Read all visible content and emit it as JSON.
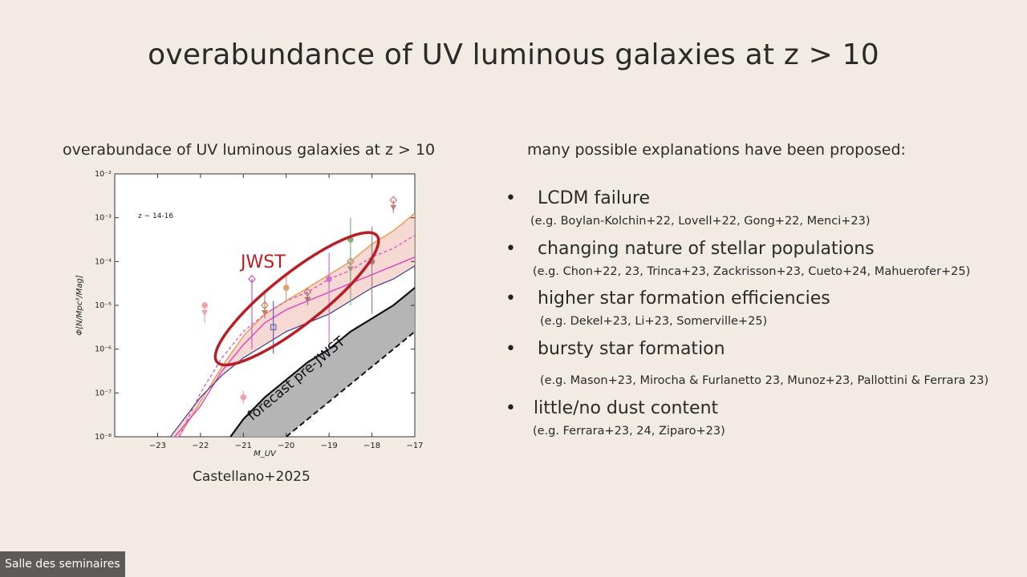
{
  "slide": {
    "title": "overabundance of UV luminous galaxies at z > 10",
    "left_heading": "overabundace of UV luminous galaxies at z > 10",
    "right_heading": "many possible explanations have been proposed:",
    "caption": "Castellano+2025",
    "bullets": [
      {
        "text": "LCDM failure",
        "refs": "(e.g. Boylan-Kolchin+22, Lovell+22, Gong+22, Menci+23)"
      },
      {
        "text": "changing nature of stellar populations",
        "refs": "(e.g. Chon+22, 23, Trinca+23, Zackrisson+23, Cueto+24, Mahuerofer+25)"
      },
      {
        "text": "higher star formation efficiencies",
        "refs": "(e.g. Dekel+23, Li+23, Somerville+25)"
      },
      {
        "text": "bursty star formation",
        "refs": "(e.g. Mason+23, Mirocha & Furlanetto 23, Munoz+23, Pallottini & Ferrara 23)"
      },
      {
        "text": "little/no dust content",
        "refs": "(e.g. Ferrara+23, 24, Ziparo+23)"
      }
    ]
  },
  "overlay": {
    "room_label": "Salle des seminaires"
  },
  "chart_data": {
    "type": "scatter",
    "xlabel": "M_UV",
    "ylabel": "Φ[N/Mpc³/Mag]",
    "xlim": [
      -24,
      -17
    ],
    "ylim_log10": [
      -8,
      -2
    ],
    "x_ticks": [
      -23,
      -22,
      -21,
      -20,
      -19,
      -18,
      -17
    ],
    "x_tick_labels": [
      "−23",
      "−22",
      "−21",
      "−20",
      "−19",
      "−18",
      "−17"
    ],
    "y_ticks_log10": [
      -8,
      -7,
      -6,
      -5,
      -4,
      -3,
      -2
    ],
    "y_tick_labels": [
      "10⁻⁸",
      "10⁻⁷",
      "10⁻⁶",
      "10⁻⁵",
      "10⁻⁴",
      "10⁻³",
      "10⁻²"
    ],
    "annotations": {
      "redshift_label": "z ∼ 14-16",
      "jwst_label": "JWST",
      "forecast_label": "forecast pre-JWST"
    },
    "colors": {
      "band": "#f3c9c0",
      "orange": "#e89a4a",
      "magenta": "#e040c0",
      "navy": "#3c3c8c",
      "ellipse": "#b81e24",
      "forecast_band": "#a8a8a8",
      "points": "#c07878"
    },
    "series": [
      {
        "style": "orange",
        "x": [
          -22.5,
          -22,
          -21.5,
          -21,
          -20.5,
          -20,
          -19.5,
          -19,
          -18.5,
          -18,
          -17.5,
          -17
        ],
        "log_y": [
          -8.0,
          -7.2,
          -6.4,
          -5.7,
          -5.2,
          -4.9,
          -4.6,
          -4.3,
          -4.0,
          -3.6,
          -3.3,
          -2.9
        ]
      },
      {
        "style": "magenta",
        "x": [
          -22.6,
          -22,
          -21.5,
          -21,
          -20.5,
          -20,
          -19.5,
          -19,
          -18.5,
          -18,
          -17.5,
          -17
        ],
        "log_y": [
          -8.0,
          -7.3,
          -6.5,
          -5.9,
          -5.4,
          -5.1,
          -4.9,
          -4.7,
          -4.5,
          -4.3,
          -4.1,
          -3.9
        ]
      },
      {
        "style": "magenta-dashed",
        "x": [
          -22.5,
          -22,
          -21.5,
          -21,
          -20.5,
          -20,
          -19.5,
          -19,
          -18.5,
          -18,
          -17.5,
          -17
        ],
        "log_y": [
          -8.0,
          -7.0,
          -6.2,
          -5.6,
          -5.2,
          -4.9,
          -4.7,
          -4.4,
          -4.2,
          -3.9,
          -3.7,
          -3.4
        ]
      },
      {
        "style": "navy",
        "x": [
          -22.7,
          -22,
          -21.5,
          -21,
          -20.5,
          -20,
          -19.5,
          -19,
          -18.5,
          -18,
          -17.5,
          -17
        ],
        "log_y": [
          -8.0,
          -7.1,
          -6.6,
          -6.2,
          -5.9,
          -5.6,
          -5.4,
          -5.2,
          -4.9,
          -4.6,
          -4.4,
          -4.1
        ]
      },
      {
        "style": "forecast-upper",
        "x": [
          -21.3,
          -21,
          -20.5,
          -20,
          -19.5,
          -19,
          -18.5,
          -18,
          -17.5,
          -17
        ],
        "log_y": [
          -8.0,
          -7.6,
          -7.1,
          -6.7,
          -6.3,
          -6.0,
          -5.6,
          -5.3,
          -5.0,
          -4.6
        ]
      },
      {
        "style": "forecast-lower",
        "x": [
          -20,
          -19.5,
          -19,
          -18.5,
          -18,
          -17.5,
          -17
        ],
        "log_y": [
          -8.0,
          -7.6,
          -7.2,
          -6.8,
          -6.4,
          -6.0,
          -5.6
        ]
      }
    ],
    "points": [
      {
        "x": -21.9,
        "log_y": -5.0,
        "err_lo": 0.4,
        "err_hi": 0.0,
        "upper_limit": true,
        "marker": "circle",
        "color": "#f0a0a8"
      },
      {
        "x": -21.0,
        "log_y": -7.1,
        "err_lo": 0.15,
        "err_hi": 0.15,
        "upper_limit": false,
        "marker": "circle",
        "color": "#f0a0a8"
      },
      {
        "x": -20.8,
        "log_y": -4.4,
        "err_lo": 1.6,
        "err_hi": 0.0,
        "upper_limit": false,
        "marker": "diamond",
        "color": "#c060c0"
      },
      {
        "x": -20.5,
        "log_y": -5.0,
        "err_lo": 0.3,
        "err_hi": 0.3,
        "upper_limit": true,
        "marker": "diamond",
        "color": "#c08060"
      },
      {
        "x": -20.3,
        "log_y": -5.5,
        "err_lo": 0.6,
        "err_hi": 0.6,
        "upper_limit": false,
        "marker": "square",
        "color": "#6060c0"
      },
      {
        "x": -20.0,
        "log_y": -4.6,
        "err_lo": 0.3,
        "err_hi": 0.3,
        "upper_limit": false,
        "marker": "circle",
        "color": "#e0a070"
      },
      {
        "x": -19.5,
        "log_y": -4.7,
        "err_lo": 0.3,
        "err_hi": 0.0,
        "upper_limit": true,
        "marker": "diamond",
        "color": "#b07070"
      },
      {
        "x": -19.0,
        "log_y": -4.4,
        "err_lo": 1.8,
        "err_hi": 0.6,
        "upper_limit": false,
        "marker": "circle",
        "color": "#d070d0"
      },
      {
        "x": -18.5,
        "log_y": -4.0,
        "err_lo": 0.4,
        "err_hi": 0.0,
        "upper_limit": true,
        "marker": "diamond",
        "color": "#c08080"
      },
      {
        "x": -18.5,
        "log_y": -3.5,
        "err_lo": 1.5,
        "err_hi": 0.5,
        "upper_limit": false,
        "marker": "circle",
        "color": "#80b080"
      },
      {
        "x": -18.0,
        "log_y": -4.0,
        "err_lo": 1.2,
        "err_hi": 0.8,
        "upper_limit": false,
        "marker": "circle",
        "color": "#a08080"
      },
      {
        "x": -17.5,
        "log_y": -2.6,
        "err_lo": 0.3,
        "err_hi": 0.0,
        "upper_limit": true,
        "marker": "diamond",
        "color": "#c08080"
      }
    ],
    "ellipse_region": {
      "x_range": [
        -21.5,
        -18.0
      ],
      "log_y_range": [
        -6.2,
        -3.5
      ]
    }
  }
}
